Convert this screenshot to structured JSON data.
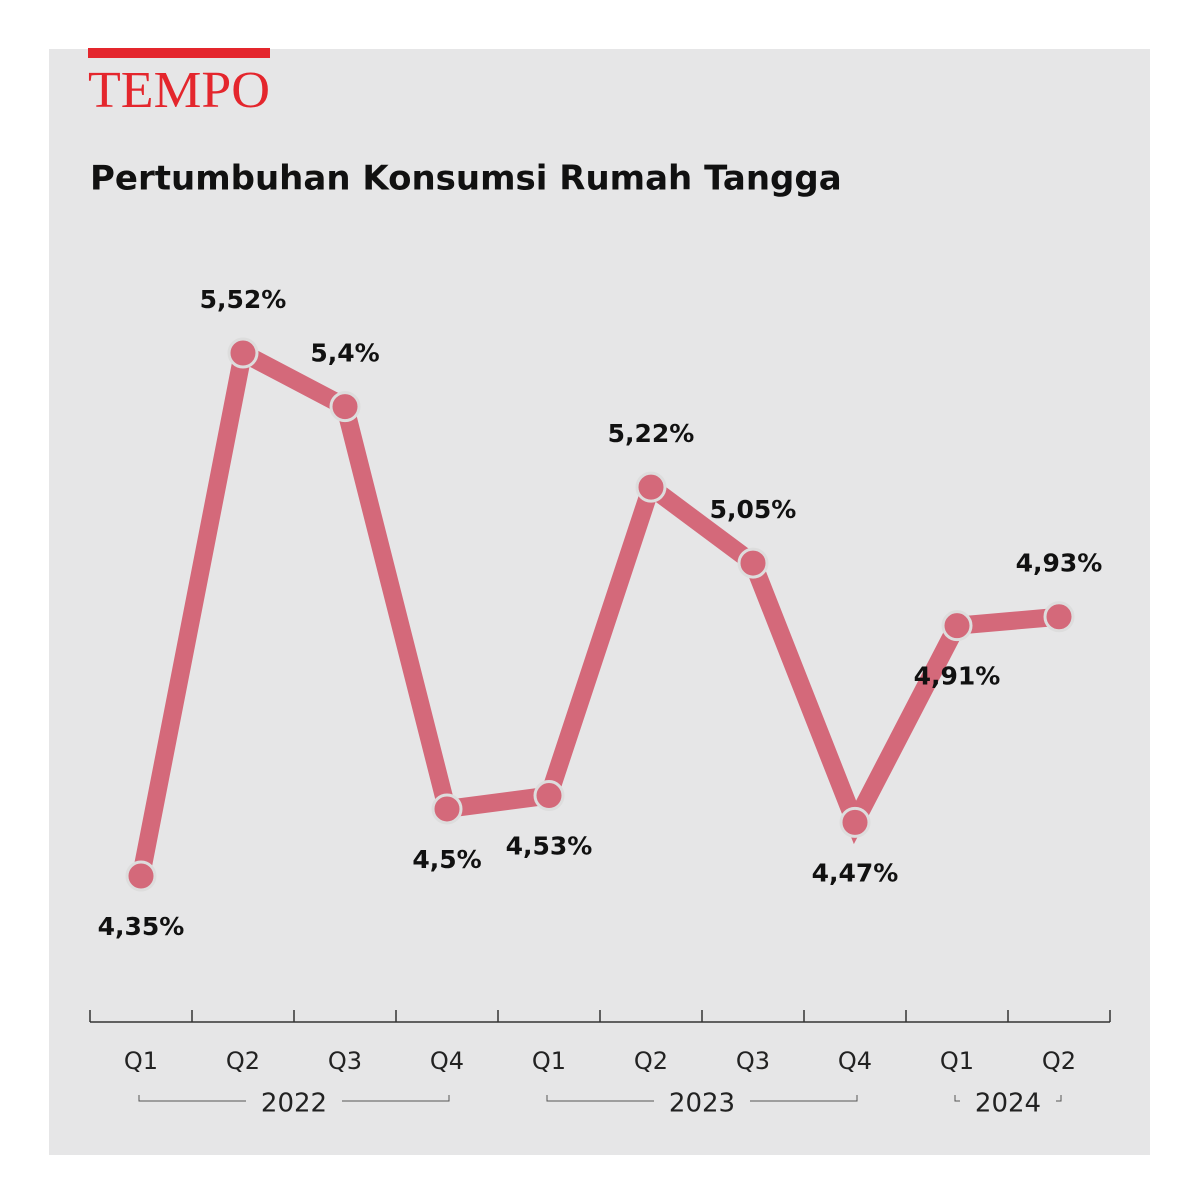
{
  "brand": "TEMPO",
  "chart_data": {
    "type": "line",
    "title": "Pertumbuhan Konsumsi Rumah Tangga",
    "groups": [
      {
        "name": "2022",
        "categories": [
          "Q1",
          "Q2",
          "Q3",
          "Q4"
        ]
      },
      {
        "name": "2023",
        "categories": [
          "Q1",
          "Q2",
          "Q3",
          "Q4"
        ]
      },
      {
        "name": "2024",
        "categories": [
          "Q1",
          "Q2"
        ]
      }
    ],
    "series": [
      {
        "color": "#d4697a",
        "values": [
          4.35,
          5.52,
          5.4,
          4.5,
          4.53,
          5.22,
          5.05,
          4.47,
          4.91,
          4.93
        ],
        "value_labels": [
          "4,35%",
          "5,52%",
          "5,4%",
          "4,5%",
          "4,53%",
          "5,22%",
          "5,05%",
          "4,47%",
          "4,91%",
          "4,93%"
        ]
      }
    ]
  }
}
